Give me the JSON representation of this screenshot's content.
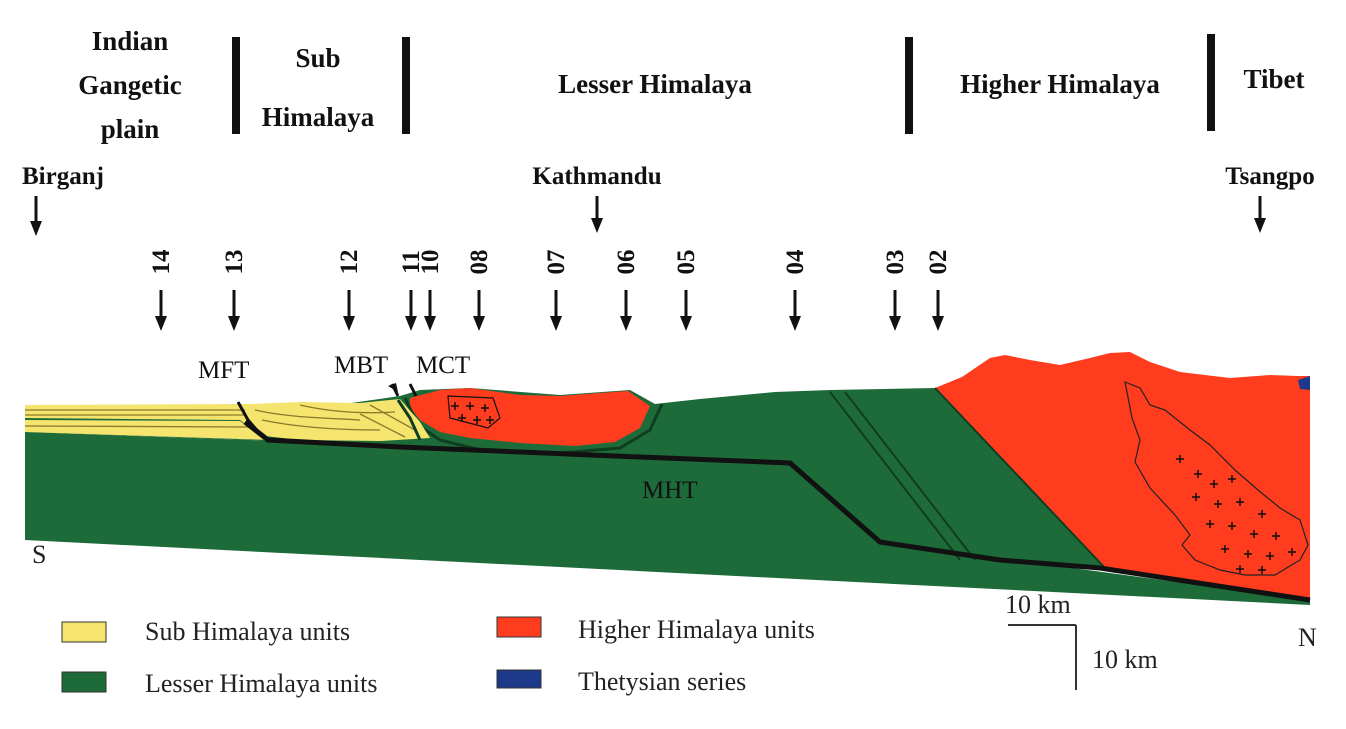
{
  "regions": [
    {
      "key": "indian",
      "lines": [
        "Indian",
        "Gangetic",
        "plain"
      ]
    },
    {
      "key": "sub",
      "lines": [
        "Sub",
        "Himalaya"
      ]
    },
    {
      "key": "lesser",
      "lines": [
        "Lesser Himalaya"
      ]
    },
    {
      "key": "higher",
      "lines": [
        "Higher Himalaya"
      ]
    },
    {
      "key": "tibet",
      "lines": [
        "Tibet"
      ]
    }
  ],
  "places": {
    "birganj": "Birganj",
    "kathmandu": "Kathmandu",
    "tsangpo": "Tsangpo"
  },
  "stations": [
    "14",
    "13",
    "12",
    "11",
    "10",
    "08",
    "07",
    "06",
    "05",
    "04",
    "03",
    "02"
  ],
  "faults": {
    "mft": "MFT",
    "mbt": "MBT",
    "mct": "MCT",
    "mht": "MHT"
  },
  "directions": {
    "south": "S",
    "north": "N"
  },
  "legend": [
    {
      "label": "Sub Himalaya units",
      "color": "#f5e46e"
    },
    {
      "label": "Lesser Himalaya units",
      "color": "#1e6b3a"
    },
    {
      "label": "Higher Himalaya units",
      "color": "#ff3c1e"
    },
    {
      "label": "Thetysian series",
      "color": "#1d3a8a"
    }
  ],
  "scale": {
    "horizontal": "10 km",
    "vertical": "10 km"
  },
  "colors": {
    "sub": "#f5e46e",
    "lesser": "#1e6b3a",
    "higher": "#ff3c1e",
    "thetys": "#1d3a8a",
    "fault": "#111111"
  }
}
